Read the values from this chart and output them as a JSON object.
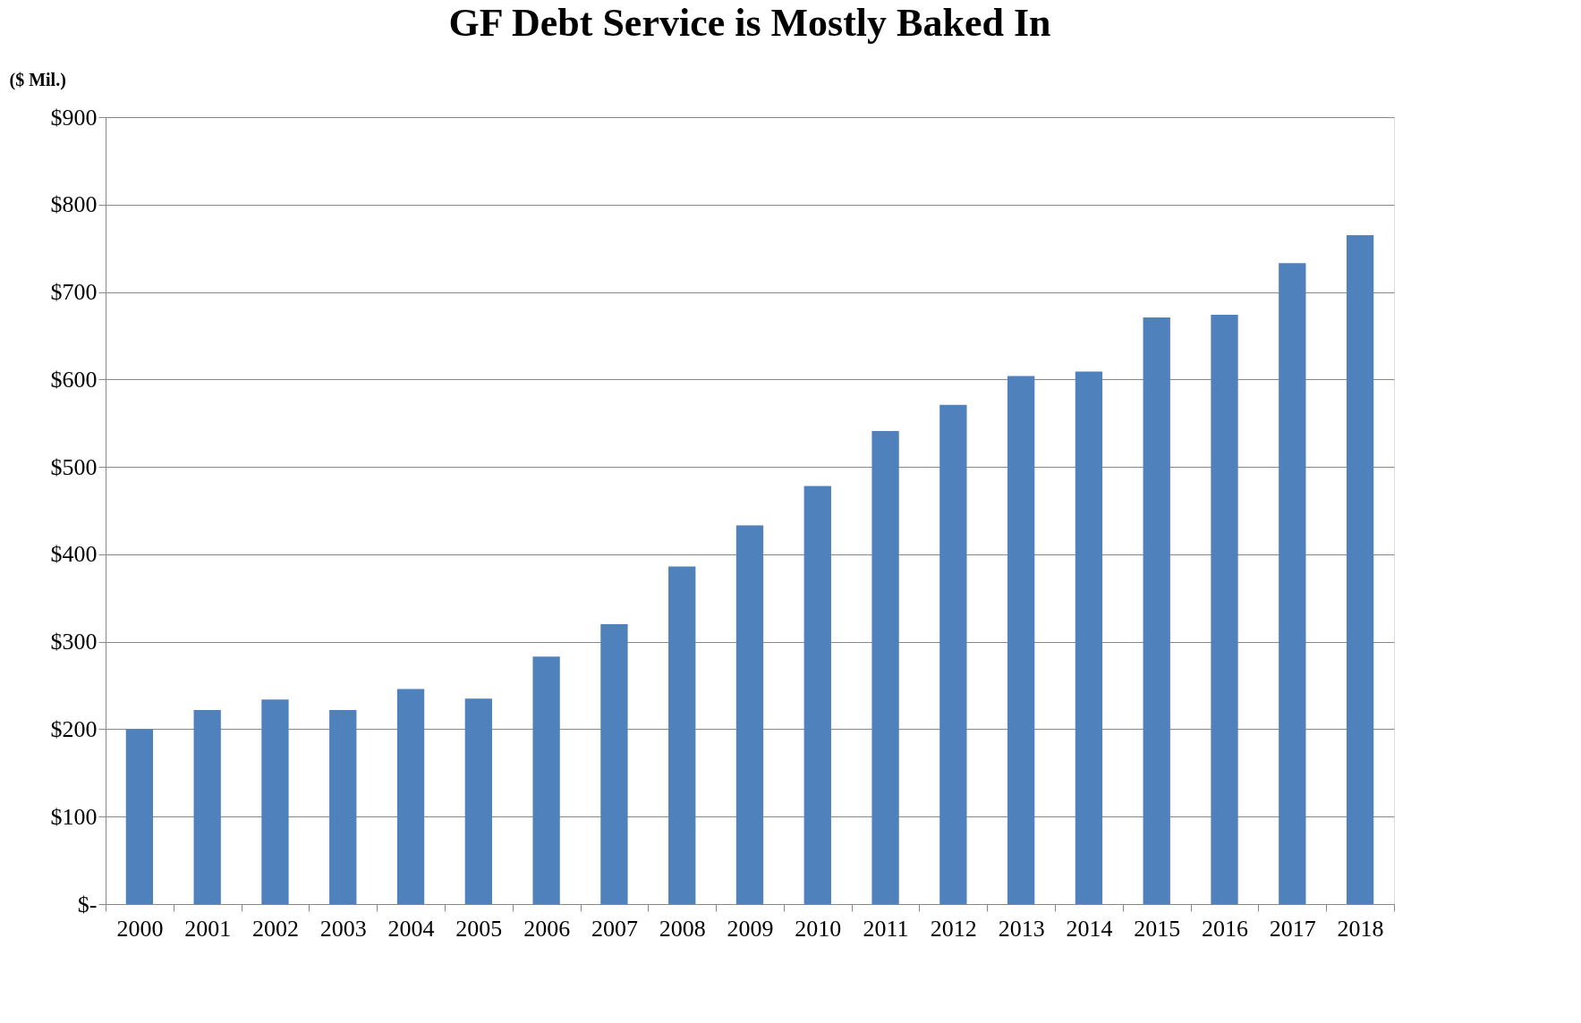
{
  "chart_data": {
    "type": "bar",
    "title": "GF Debt Service is Mostly Baked In",
    "ylabel": "($ Mil.)",
    "categories": [
      "2000",
      "2001",
      "2002",
      "2003",
      "2004",
      "2005",
      "2006",
      "2007",
      "2008",
      "2009",
      "2010",
      "2011",
      "2012",
      "2013",
      "2014",
      "2015",
      "2016",
      "2017",
      "2018"
    ],
    "values": [
      200,
      222,
      234,
      222,
      246,
      235,
      283,
      320,
      386,
      433,
      478,
      541,
      571,
      604,
      609,
      671,
      674,
      733,
      765
    ],
    "color": "#4f81bd",
    "ylim": [
      0,
      900
    ],
    "yticks": [
      {
        "value": 0,
        "label": "$-"
      },
      {
        "value": 100,
        "label": "$100"
      },
      {
        "value": 200,
        "label": "$200"
      },
      {
        "value": 300,
        "label": "$300"
      },
      {
        "value": 400,
        "label": "$400"
      },
      {
        "value": 500,
        "label": "$500"
      },
      {
        "value": 600,
        "label": "$600"
      },
      {
        "value": 700,
        "label": "$700"
      },
      {
        "value": 800,
        "label": "$800"
      },
      {
        "value": 900,
        "label": "$900"
      }
    ],
    "grid": "y"
  }
}
